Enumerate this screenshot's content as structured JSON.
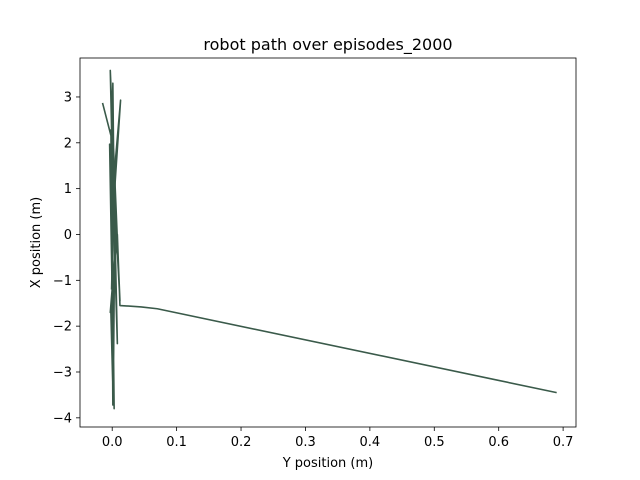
{
  "chart_data": {
    "type": "line",
    "title": "robot path over episodes_2000",
    "xlabel": "Y position (m)",
    "ylabel": "X position (m)",
    "xlim": [
      -0.05,
      0.72
    ],
    "ylim": [
      -4.2,
      3.85
    ],
    "xticks": [
      0.0,
      0.1,
      0.2,
      0.3,
      0.4,
      0.5,
      0.6,
      0.7
    ],
    "xtick_labels": [
      "0.0",
      "0.1",
      "0.2",
      "0.3",
      "0.4",
      "0.5",
      "0.6",
      "0.7"
    ],
    "yticks": [
      -4,
      -3,
      -2,
      -1,
      0,
      1,
      2,
      3
    ],
    "ytick_labels": [
      "−4",
      "−3",
      "−2",
      "−1",
      "0",
      "1",
      "2",
      "3"
    ],
    "grid": false,
    "legend": "none",
    "line_color": "#3a5a4a",
    "series": [
      {
        "x": [
          -0.015,
          0.0,
          0.001,
          0.004,
          -0.003,
          0.012,
          -0.001,
          0.001,
          -0.002,
          0.008,
          0.004,
          0.002,
          -0.004,
          0.003,
          0.0,
          0.001,
          -0.002,
          0.005,
          -0.003,
          0.008,
          0.012,
          0.045,
          0.07,
          0.69
        ],
        "y": [
          2.87,
          2.05,
          3.3,
          -0.8,
          3.58,
          -1.45,
          2.0,
          -3.72,
          2.28,
          -2.38,
          0.24,
          -3.0,
          1.97,
          -3.8,
          -0.05,
          -3.35,
          -1.72,
          -0.3,
          -1.7,
          0.0,
          -1.55,
          -1.58,
          -1.62,
          -3.45
        ]
      },
      {
        "x": [
          0.001,
          0.0,
          0.013,
          0.002,
          -0.001
        ],
        "y": [
          -3.55,
          0.8,
          2.93,
          0.6,
          -1.2
        ]
      }
    ]
  }
}
